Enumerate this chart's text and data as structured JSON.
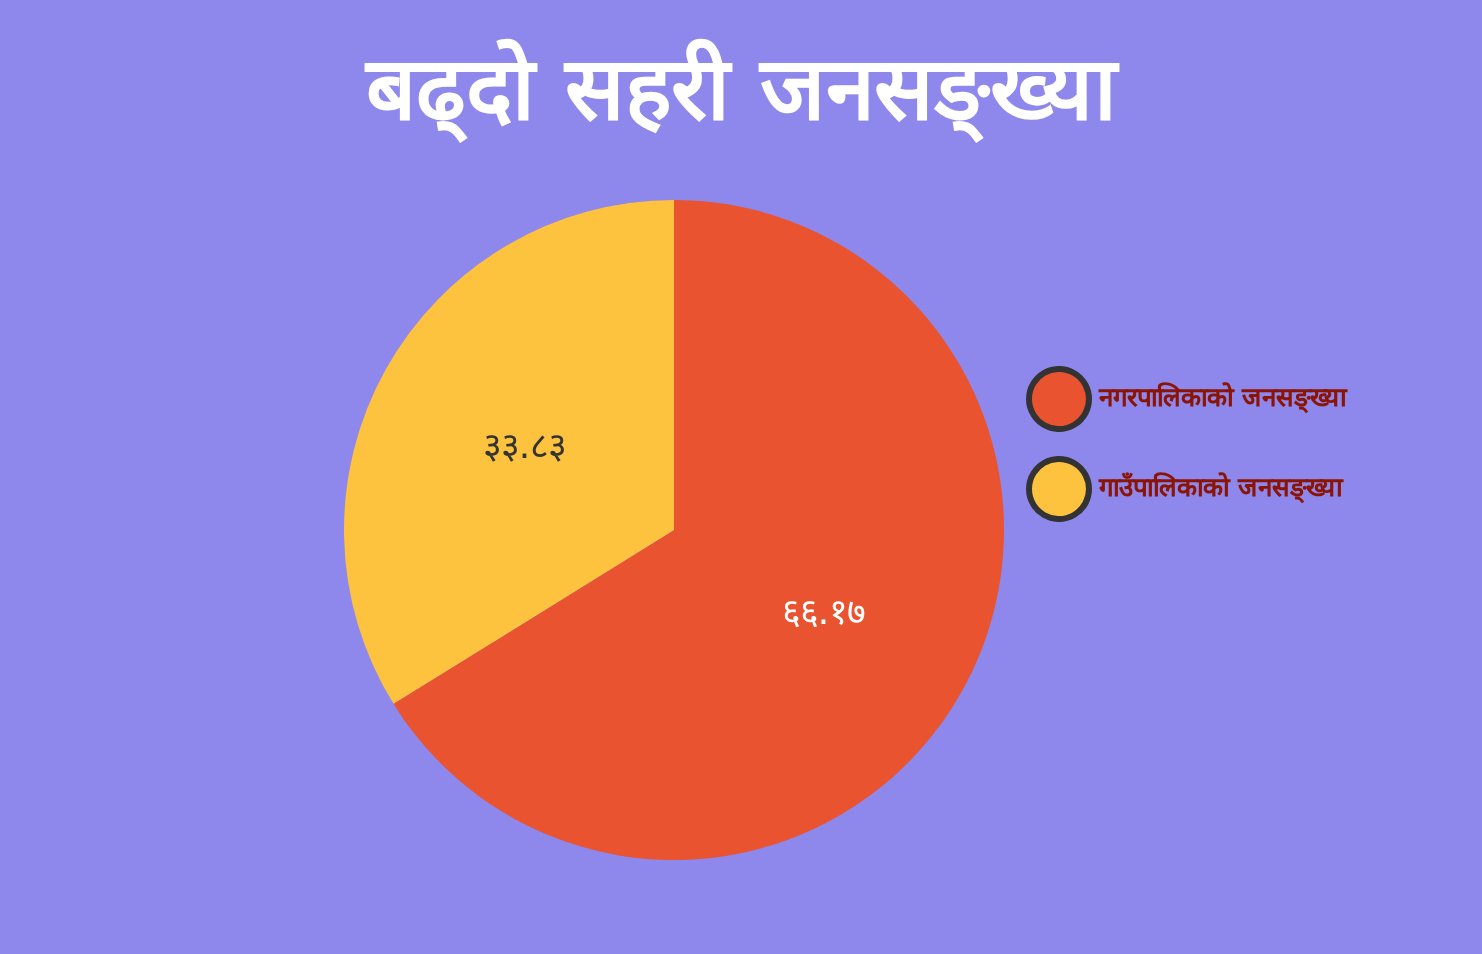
{
  "chart_data": {
    "type": "pie",
    "title": "बढ्दो सहरी जनसङ्ख्या",
    "categories": [
      "नगरपालिकाको जनसङ्ख्या",
      "गाउँपालिकाको जनसङ्ख्या"
    ],
    "values": [
      66.17,
      33.83
    ],
    "colors": [
      "#e9532f",
      "#fdc23e"
    ],
    "value_labels": [
      "६६.१७",
      "३३.८३"
    ],
    "legend": "right"
  }
}
